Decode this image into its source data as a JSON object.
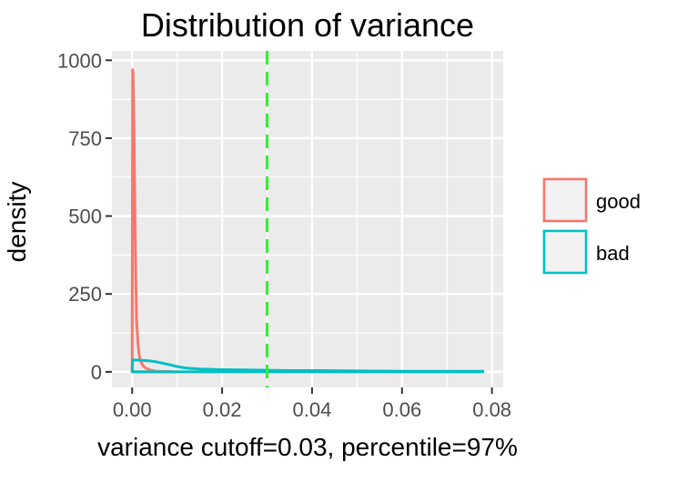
{
  "chart_data": {
    "type": "area",
    "title": "Distribution of variance",
    "xlabel": "variance cutoff=0.03, percentile=97%",
    "ylabel": "density",
    "xlim": [
      -0.0045,
      0.0825
    ],
    "ylim": [
      -50,
      1030
    ],
    "x_ticks": [
      "0.00",
      "0.02",
      "0.04",
      "0.06",
      "0.08"
    ],
    "x_tick_values": [
      0,
      0.02,
      0.04,
      0.06,
      0.08
    ],
    "y_ticks": [
      "0",
      "250",
      "500",
      "750",
      "1000"
    ],
    "y_tick_values": [
      0,
      250,
      500,
      750,
      1000
    ],
    "grid": true,
    "legend_position": "right",
    "cutoff_line": {
      "x": 0.03,
      "color": "#33ee33",
      "style": "dashed"
    },
    "series": [
      {
        "name": "good",
        "color": "#f8766d",
        "x": [
          0,
          0.0001,
          0.0002,
          0.0004,
          0.0006,
          0.0008,
          0.001,
          0.0013,
          0.0016,
          0.002,
          0.0025,
          0.003,
          0.0035,
          0.004,
          0.0045,
          0.005,
          0.0055,
          0.006,
          0.007,
          0.008,
          0.009,
          0.01
        ],
        "values": [
          0,
          970,
          960,
          780,
          520,
          300,
          160,
          90,
          50,
          30,
          18,
          12,
          9,
          6,
          4,
          3,
          2,
          2,
          1,
          1,
          0,
          0
        ]
      },
      {
        "name": "bad",
        "color": "#00bfc4",
        "x": [
          0,
          0.0001,
          0.001,
          0.002,
          0.003,
          0.004,
          0.005,
          0.006,
          0.008,
          0.01,
          0.012,
          0.015,
          0.02,
          0.025,
          0.03,
          0.035,
          0.04,
          0.05,
          0.06,
          0.07,
          0.078
        ],
        "values": [
          0,
          38,
          38,
          37,
          36,
          35,
          33,
          30,
          24,
          17,
          12,
          9,
          7,
          6,
          5,
          4,
          4,
          3,
          2,
          2,
          2
        ]
      }
    ]
  }
}
